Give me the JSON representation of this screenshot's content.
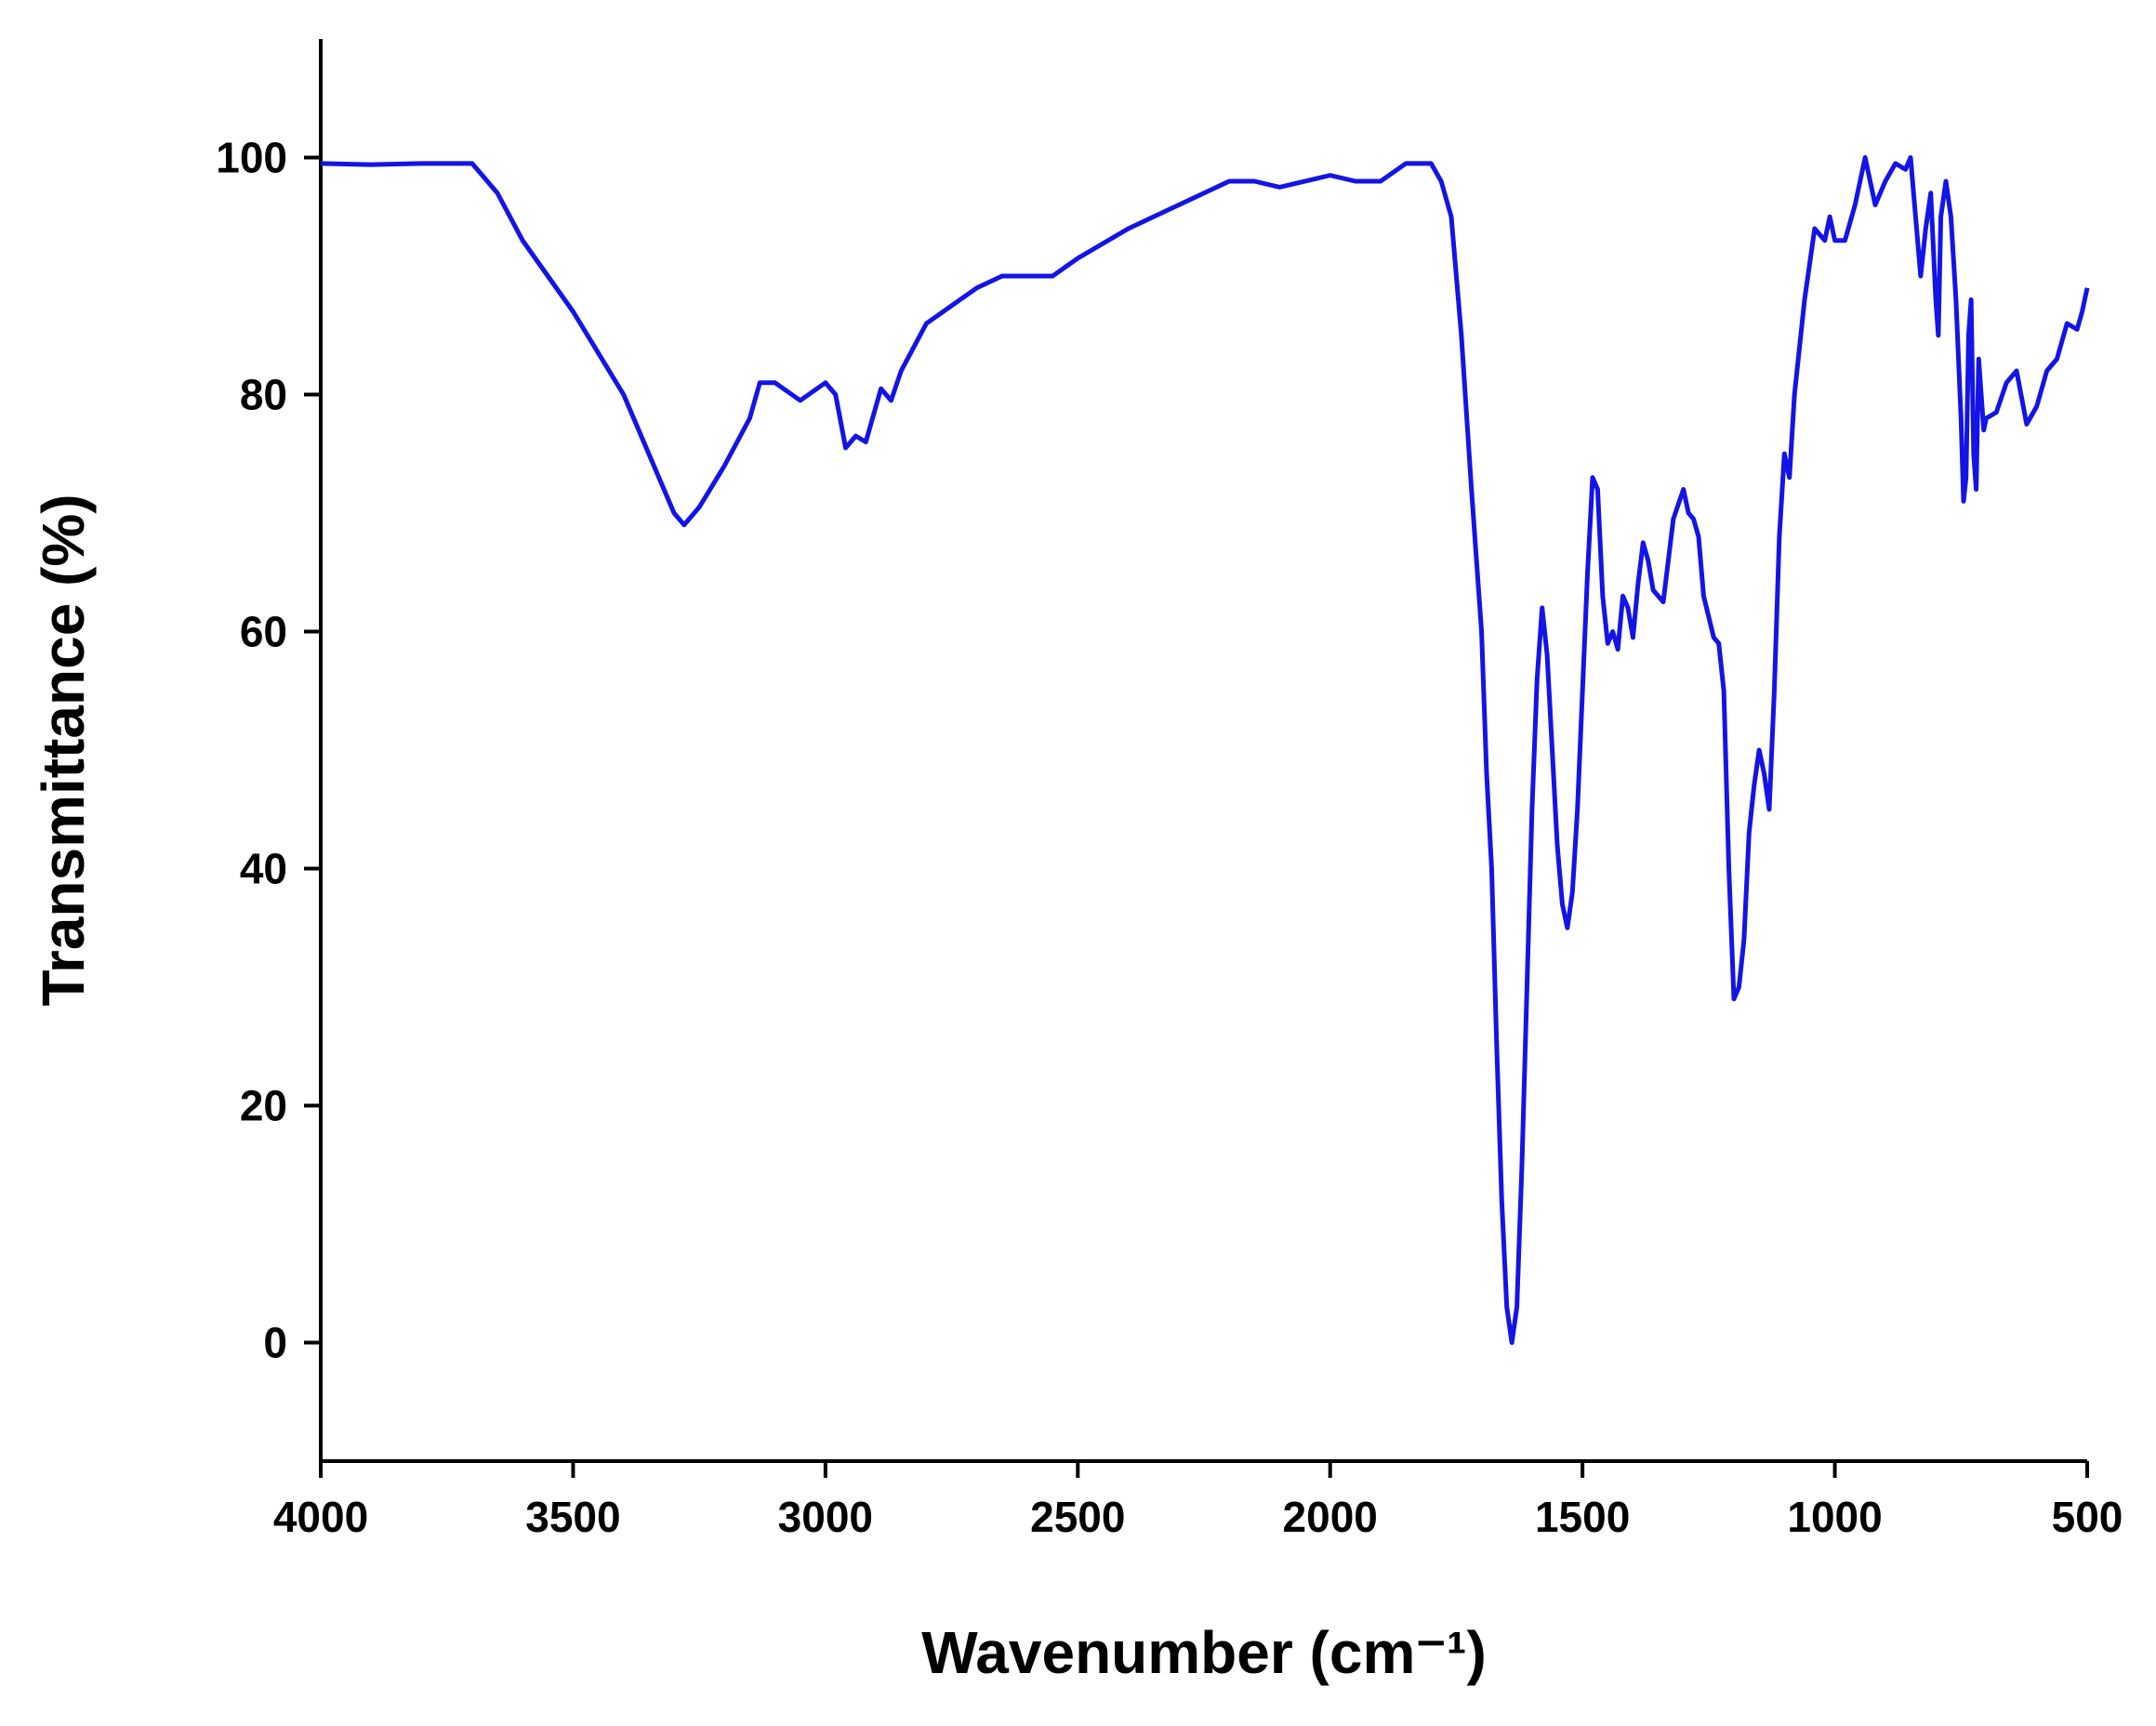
{
  "chart_data": {
    "type": "line",
    "xlabel": "Wavenumber (cm⁻¹)",
    "ylabel": "Transmittance (%)",
    "x": [
      4000,
      3900,
      3800,
      3700,
      3650,
      3600,
      3500,
      3400,
      3350,
      3300,
      3280,
      3250,
      3200,
      3150,
      3130,
      3100,
      3050,
      3000,
      2980,
      2960,
      2940,
      2920,
      2900,
      2890,
      2870,
      2850,
      2800,
      2700,
      2650,
      2550,
      2500,
      2400,
      2300,
      2200,
      2150,
      2100,
      2000,
      1950,
      1900,
      1850,
      1800,
      1780,
      1760,
      1740,
      1720,
      1700,
      1690,
      1680,
      1670,
      1660,
      1650,
      1640,
      1630,
      1620,
      1610,
      1600,
      1590,
      1580,
      1570,
      1560,
      1550,
      1540,
      1530,
      1520,
      1510,
      1500,
      1490,
      1480,
      1470,
      1460,
      1450,
      1440,
      1430,
      1420,
      1410,
      1400,
      1390,
      1380,
      1370,
      1360,
      1350,
      1340,
      1320,
      1300,
      1290,
      1280,
      1270,
      1260,
      1240,
      1230,
      1220,
      1210,
      1200,
      1190,
      1180,
      1170,
      1160,
      1150,
      1140,
      1130,
      1120,
      1110,
      1100,
      1090,
      1080,
      1060,
      1040,
      1020,
      1010,
      1000,
      980,
      960,
      940,
      920,
      900,
      880,
      860,
      850,
      840,
      830,
      820,
      810,
      800,
      795,
      790,
      780,
      770,
      760,
      750,
      745,
      740,
      735,
      730,
      725,
      720,
      715,
      710,
      705,
      700,
      680,
      660,
      640,
      620,
      600,
      580,
      560,
      540,
      520,
      510,
      500
    ],
    "series": [
      {
        "color": "#1414e6",
        "values": [
          99.5,
          99.4,
          99.5,
          99.5,
          97,
          93,
          87,
          80,
          75,
          70,
          69,
          70.5,
          74,
          78,
          81,
          81,
          79.5,
          81,
          80,
          75.5,
          76.5,
          76,
          79,
          80.5,
          79.5,
          82,
          86,
          89,
          90,
          90,
          91.5,
          94,
          96,
          98,
          98,
          97.5,
          98.5,
          98,
          98,
          99.5,
          99.5,
          98,
          95,
          85,
          72,
          60,
          48,
          40,
          25,
          12,
          3,
          0,
          3,
          15,
          30,
          45,
          56,
          62,
          58,
          50,
          42,
          37,
          35,
          38,
          45,
          55,
          65,
          73,
          72,
          63,
          59,
          60,
          58.5,
          63,
          62,
          59.5,
          64,
          67.5,
          66,
          63.5,
          63,
          62.5,
          69.5,
          72,
          70,
          69.5,
          68,
          63,
          59.5,
          59,
          55,
          40,
          29,
          30,
          34,
          43,
          47,
          50,
          48,
          45,
          55,
          68,
          75,
          73,
          80,
          88,
          94,
          93,
          95,
          93,
          93,
          96,
          100,
          96,
          98,
          99.5,
          99,
          100,
          95,
          90,
          94,
          97,
          88,
          85,
          95,
          98,
          95,
          88,
          78,
          71,
          73,
          85,
          88,
          75,
          72,
          83,
          80,
          77,
          78,
          78.5,
          81,
          82,
          77.5,
          79,
          82,
          83,
          86,
          85.5,
          87,
          89
        ]
      }
    ],
    "xlim": [
      4000,
      500
    ],
    "ylim": [
      -10,
      110
    ],
    "xticks": [
      4000,
      3500,
      3000,
      2500,
      2000,
      1500,
      1000,
      500
    ],
    "yticks": [
      0,
      20,
      40,
      60,
      80,
      100
    ]
  }
}
